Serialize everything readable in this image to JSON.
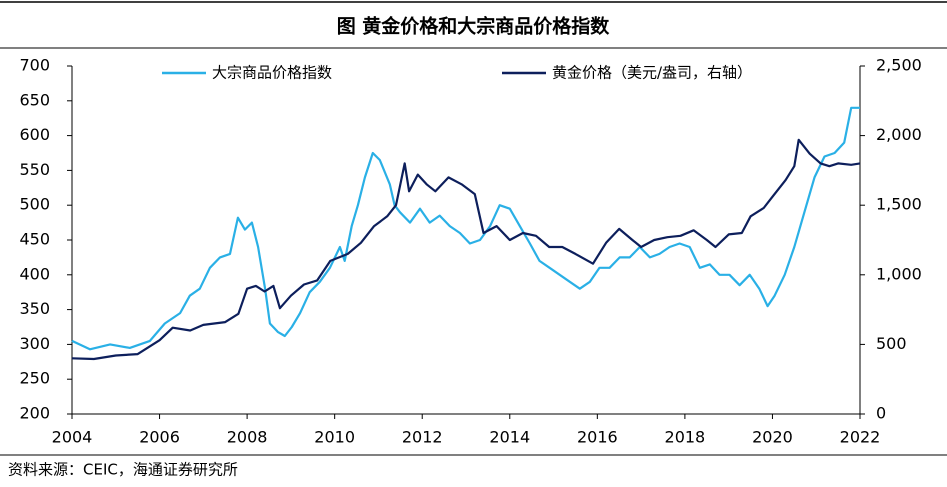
{
  "chart_data": {
    "type": "line",
    "title": "图  黄金价格和大宗商品价格指数",
    "source": "资料来源：CEIC，海通证券研究所",
    "xlim": [
      2004,
      2022
    ],
    "xticks": [
      2004,
      2006,
      2008,
      2010,
      2012,
      2014,
      2016,
      2018,
      2020,
      2022
    ],
    "ylim": [
      200,
      700
    ],
    "yticks": [
      200,
      250,
      300,
      350,
      400,
      450,
      500,
      550,
      600,
      650,
      700
    ],
    "y2lim": [
      0,
      2500
    ],
    "y2ticks": [
      0,
      500,
      {
        "value": 1000,
        "label": "1,000"
      },
      {
        "value": 1500,
        "label": "1,500"
      },
      {
        "value": 2000,
        "label": "2,000"
      },
      {
        "value": 2500,
        "label": "2,500"
      }
    ],
    "series": [
      {
        "name": "大宗商品价格指数",
        "color": "#2ab0e6",
        "x": [
          2004.0,
          2004.41,
          2004.87,
          2005.32,
          2005.78,
          2006.12,
          2006.47,
          2006.69,
          2006.92,
          2007.15,
          2007.38,
          2007.61,
          2007.79,
          2007.95,
          2008.11,
          2008.25,
          2008.41,
          2008.52,
          2008.7,
          2008.86,
          2009.02,
          2009.21,
          2009.43,
          2009.66,
          2009.89,
          2010.12,
          2010.23,
          2010.39,
          2010.53,
          2010.69,
          2010.87,
          2011.03,
          2011.26,
          2011.37,
          2011.49,
          2011.72,
          2011.95,
          2012.17,
          2012.4,
          2012.63,
          2012.86,
          2013.09,
          2013.32,
          2013.55,
          2013.77,
          2014.0,
          2014.23,
          2014.46,
          2014.68,
          2014.91,
          2015.14,
          2015.37,
          2015.6,
          2015.83,
          2016.05,
          2016.28,
          2016.51,
          2016.74,
          2016.97,
          2017.2,
          2017.42,
          2017.65,
          2017.88,
          2018.11,
          2018.34,
          2018.57,
          2018.79,
          2019.02,
          2019.25,
          2019.48,
          2019.7,
          2019.89,
          2020.05,
          2020.28,
          2020.5,
          2020.73,
          2020.96,
          2021.19,
          2021.42,
          2021.64,
          2021.8,
          2022.0
        ],
        "values": [
          305,
          293,
          300,
          295,
          305,
          330,
          345,
          370,
          380,
          410,
          425,
          430,
          482,
          465,
          475,
          440,
          380,
          330,
          318,
          312,
          325,
          345,
          375,
          390,
          410,
          440,
          420,
          470,
          500,
          540,
          575,
          565,
          530,
          500,
          490,
          475,
          495,
          475,
          485,
          470,
          460,
          445,
          450,
          470,
          500,
          495,
          470,
          445,
          420,
          410,
          400,
          390,
          380,
          390,
          410,
          410,
          425,
          425,
          440,
          425,
          430,
          440,
          445,
          440,
          410,
          415,
          400,
          400,
          385,
          400,
          380,
          355,
          370,
          400,
          440,
          490,
          540,
          570,
          575,
          590,
          640,
          640
        ]
      },
      {
        "name": "黄金价格（美元/盎司，右轴）",
        "color": "#0d1f5c",
        "axis": "y2",
        "x": [
          2004.0,
          2004.5,
          2005.0,
          2005.5,
          2006.0,
          2006.3,
          2006.7,
          2007.0,
          2007.5,
          2007.8,
          2008.0,
          2008.2,
          2008.4,
          2008.6,
          2008.75,
          2009.0,
          2009.3,
          2009.6,
          2009.9,
          2010.3,
          2010.6,
          2010.9,
          2011.2,
          2011.4,
          2011.6,
          2011.7,
          2011.9,
          2012.1,
          2012.3,
          2012.6,
          2012.9,
          2013.2,
          2013.4,
          2013.7,
          2014.0,
          2014.3,
          2014.6,
          2014.9,
          2015.2,
          2015.5,
          2015.9,
          2016.2,
          2016.5,
          2016.8,
          2017.0,
          2017.3,
          2017.6,
          2017.9,
          2018.2,
          2018.5,
          2018.7,
          2019.0,
          2019.3,
          2019.5,
          2019.8,
          2020.0,
          2020.3,
          2020.5,
          2020.6,
          2020.85,
          2021.1,
          2021.3,
          2021.5,
          2021.8,
          2022.0
        ],
        "values": [
          400,
          395,
          420,
          430,
          530,
          620,
          600,
          640,
          660,
          720,
          900,
          920,
          880,
          920,
          760,
          850,
          930,
          960,
          1100,
          1150,
          1230,
          1350,
          1420,
          1500,
          1800,
          1600,
          1720,
          1650,
          1600,
          1700,
          1650,
          1580,
          1300,
          1350,
          1250,
          1300,
          1280,
          1200,
          1200,
          1150,
          1080,
          1230,
          1330,
          1250,
          1200,
          1250,
          1270,
          1280,
          1320,
          1250,
          1200,
          1290,
          1300,
          1420,
          1480,
          1560,
          1680,
          1780,
          1970,
          1870,
          1800,
          1780,
          1800,
          1790,
          1800
        ]
      }
    ]
  }
}
